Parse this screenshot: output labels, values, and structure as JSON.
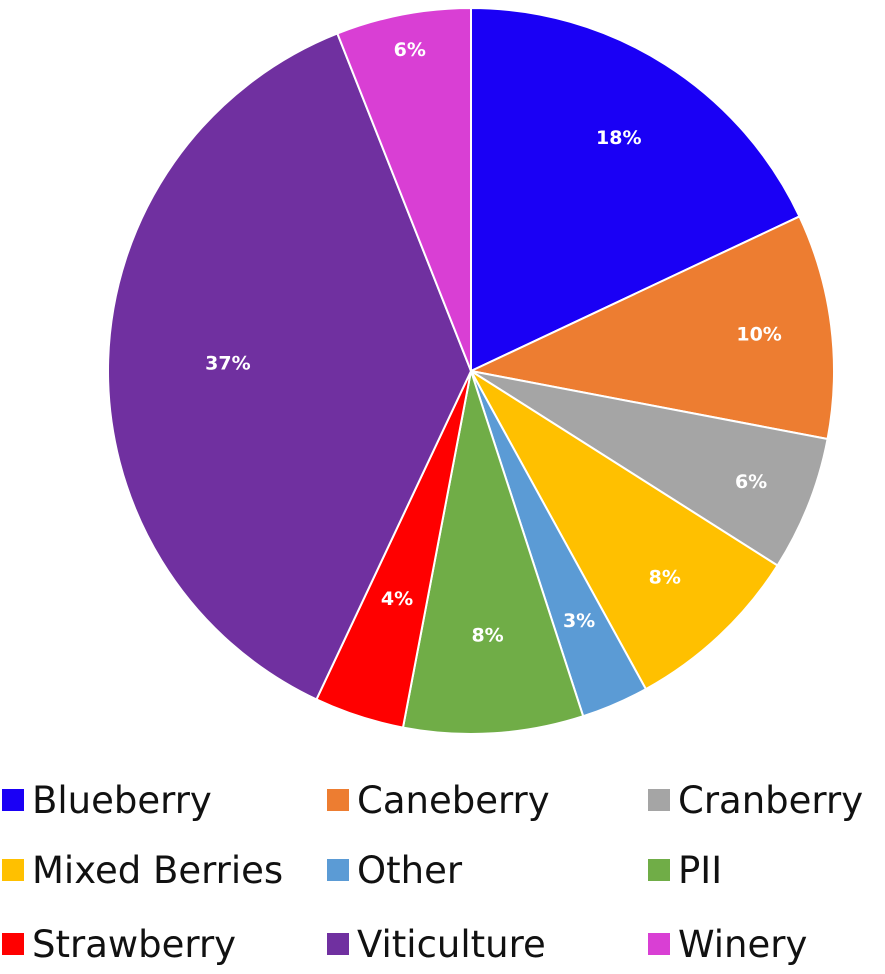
{
  "chart_data": {
    "type": "pie",
    "start_angle": "12 o'clock",
    "direction": "clockwise",
    "legend_position": "bottom",
    "slices": [
      {
        "name": "Blueberry",
        "value": 18,
        "label": "18%",
        "color": "#1a00f5"
      },
      {
        "name": "Caneberry",
        "value": 10,
        "label": "10%",
        "color": "#ed7d31"
      },
      {
        "name": "Cranberry",
        "value": 6,
        "label": "6%",
        "color": "#a5a5a5"
      },
      {
        "name": "Mixed Berries",
        "value": 8,
        "label": "8%",
        "color": "#ffc000"
      },
      {
        "name": "Other",
        "value": 3,
        "label": "3%",
        "color": "#5b9bd5"
      },
      {
        "name": "PII",
        "value": 8,
        "label": "8%",
        "color": "#70ad47"
      },
      {
        "name": "Strawberry",
        "value": 4,
        "label": "4%",
        "color": "#ff0000"
      },
      {
        "name": "Viticulture",
        "value": 37,
        "label": "37%",
        "color": "#7030a0"
      },
      {
        "name": "Winery",
        "value": 6,
        "label": "6%",
        "color": "#d93fd4"
      }
    ]
  }
}
